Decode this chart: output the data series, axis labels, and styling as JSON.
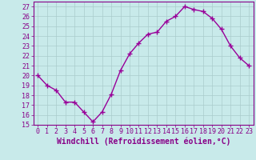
{
  "x": [
    0,
    1,
    2,
    3,
    4,
    5,
    6,
    7,
    8,
    9,
    10,
    11,
    12,
    13,
    14,
    15,
    16,
    17,
    18,
    19,
    20,
    21,
    22,
    23
  ],
  "y": [
    20,
    19,
    18.5,
    17.3,
    17.3,
    16.3,
    15.3,
    16.3,
    18.1,
    20.5,
    22.2,
    23.3,
    24.2,
    24.4,
    25.5,
    26.0,
    27.0,
    26.7,
    26.5,
    25.8,
    24.7,
    23.0,
    21.8,
    21.0
  ],
  "line_color": "#990099",
  "marker": "+",
  "marker_size": 4,
  "marker_lw": 1.0,
  "xlabel": "Windchill (Refroidissement éolien,°C)",
  "xlabel_fontsize": 7,
  "ylim": [
    15,
    27.5
  ],
  "xlim": [
    -0.5,
    23.5
  ],
  "yticks": [
    15,
    16,
    17,
    18,
    19,
    20,
    21,
    22,
    23,
    24,
    25,
    26,
    27
  ],
  "xticks": [
    0,
    1,
    2,
    3,
    4,
    5,
    6,
    7,
    8,
    9,
    10,
    11,
    12,
    13,
    14,
    15,
    16,
    17,
    18,
    19,
    20,
    21,
    22,
    23
  ],
  "xtick_labels": [
    "0",
    "1",
    "2",
    "3",
    "4",
    "5",
    "6",
    "7",
    "8",
    "9",
    "10",
    "11",
    "12",
    "13",
    "14",
    "15",
    "16",
    "17",
    "18",
    "19",
    "20",
    "21",
    "22",
    "23"
  ],
  "ytick_labels": [
    "15",
    "16",
    "17",
    "18",
    "19",
    "20",
    "21",
    "22",
    "23",
    "24",
    "25",
    "26",
    "27"
  ],
  "bg_color": "#c8eaea",
  "grid_color": "#aacccc",
  "tick_color": "#880088",
  "tick_fontsize": 6,
  "line_width": 1.0,
  "spine_color": "#880088"
}
